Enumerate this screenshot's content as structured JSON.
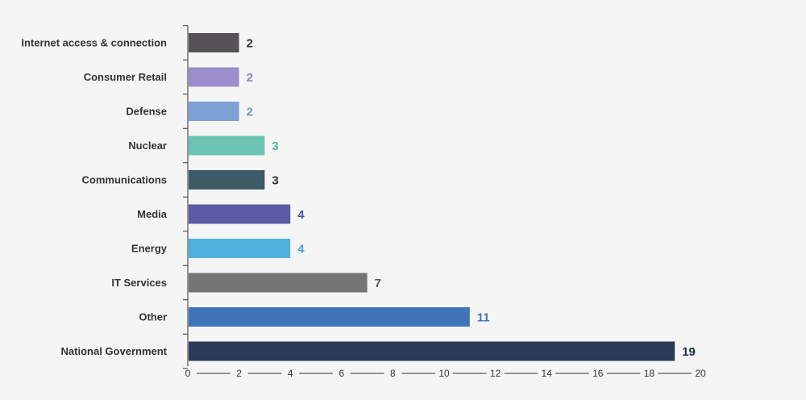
{
  "chart_data": {
    "type": "bar",
    "orientation": "horizontal",
    "categories": [
      "Internet access & connection",
      "Consumer Retail",
      "Defense",
      "Nuclear",
      "Communications",
      "Media",
      "Energy",
      "IT Services",
      "Other",
      "National Government"
    ],
    "values": [
      2,
      2,
      2,
      3,
      3,
      4,
      4,
      7,
      11,
      19
    ],
    "bar_colors": [
      "#555355",
      "#9a8ecb",
      "#7ba1d5",
      "#6cc5b2",
      "#3d5a67",
      "#5b5aa6",
      "#4fb1dd",
      "#757575",
      "#3f74b9",
      "#2b3a59"
    ],
    "value_label_colors": [
      "#333333",
      "#8c83c6",
      "#6e98cf",
      "#4fb9a3",
      "#333333",
      "#4e4fa3",
      "#47a7d6",
      "#555555",
      "#3f74b9",
      "#1e2c45"
    ],
    "xlim": [
      0,
      20
    ],
    "xticks": [
      0,
      2,
      4,
      6,
      8,
      10,
      12,
      14,
      16,
      18,
      20
    ],
    "title": "",
    "xlabel": "",
    "ylabel": "",
    "grid": false,
    "legend": "none"
  }
}
